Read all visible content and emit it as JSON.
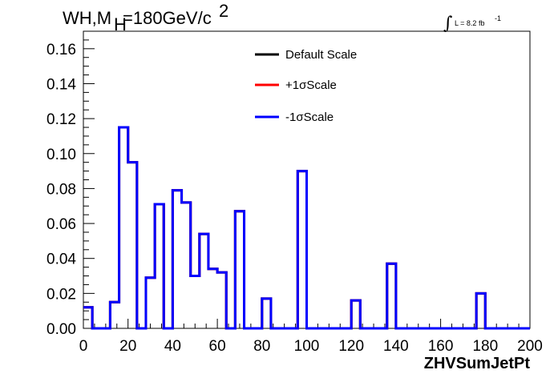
{
  "chart_data": {
    "type": "histogram",
    "title_main": "WH,M",
    "title_sub": "H",
    "title_rest": "=180GeV/c",
    "title_sup": "2",
    "lumi_label": "L = 8.2 fb",
    "lumi_sup": "-1",
    "xlabel": "ZHVSumJetPt",
    "ylabel": "",
    "xlim": [
      0,
      200
    ],
    "ylim": [
      0,
      0.17
    ],
    "bin_width": 4,
    "x_ticks": [
      "0",
      "20",
      "40",
      "60",
      "80",
      "100",
      "120",
      "140",
      "160",
      "180",
      "200"
    ],
    "y_ticks": [
      "0.00",
      "0.02",
      "0.04",
      "0.06",
      "0.08",
      "0.10",
      "0.12",
      "0.14",
      "0.16"
    ],
    "legend_position": "top-center",
    "series": [
      {
        "name": "Default Scale",
        "color": "#000000",
        "values": [
          0.012,
          0.0,
          0.0,
          0.015,
          0.115,
          0.095,
          0.0,
          0.029,
          0.071,
          0.0,
          0.079,
          0.072,
          0.03,
          0.054,
          0.034,
          0.032,
          0.0,
          0.067,
          0.0,
          0.0,
          0.017,
          0.0,
          0.0,
          0.0,
          0.09,
          0.0,
          0.0,
          0.0,
          0.0,
          0.0,
          0.016,
          0.0,
          0.0,
          0.0,
          0.037,
          0.0,
          0.0,
          0.0,
          0.0,
          0.0,
          0.0,
          0.0,
          0.0,
          0.0,
          0.02,
          0.0,
          0.0,
          0.0,
          0.0,
          0.0
        ]
      },
      {
        "name": "+1σScale",
        "color": "#ff0000",
        "values": [
          0.012,
          0.0,
          0.0,
          0.015,
          0.115,
          0.095,
          0.0,
          0.029,
          0.071,
          0.0,
          0.079,
          0.072,
          0.03,
          0.054,
          0.034,
          0.032,
          0.0,
          0.067,
          0.0,
          0.0,
          0.017,
          0.0,
          0.0,
          0.0,
          0.09,
          0.0,
          0.0,
          0.0,
          0.0,
          0.0,
          0.016,
          0.0,
          0.0,
          0.0,
          0.037,
          0.0,
          0.0,
          0.0,
          0.0,
          0.0,
          0.0,
          0.0,
          0.0,
          0.0,
          0.02,
          0.0,
          0.0,
          0.0,
          0.0,
          0.0
        ]
      },
      {
        "name": "-1σScale",
        "color": "#0000ff",
        "values": [
          0.012,
          0.0,
          0.0,
          0.015,
          0.115,
          0.095,
          0.0,
          0.029,
          0.071,
          0.0,
          0.079,
          0.072,
          0.03,
          0.054,
          0.034,
          0.032,
          0.0,
          0.067,
          0.0,
          0.0,
          0.017,
          0.0,
          0.0,
          0.0,
          0.09,
          0.0,
          0.0,
          0.0,
          0.0,
          0.0,
          0.016,
          0.0,
          0.0,
          0.0,
          0.037,
          0.0,
          0.0,
          0.0,
          0.0,
          0.0,
          0.0,
          0.0,
          0.0,
          0.0,
          0.02,
          0.0,
          0.0,
          0.0,
          0.0,
          0.0
        ]
      }
    ]
  }
}
